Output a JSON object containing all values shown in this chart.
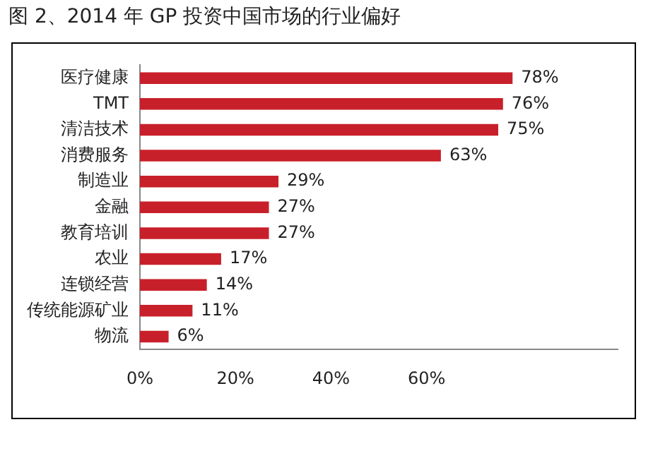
{
  "chart_data": {
    "type": "bar",
    "orientation": "horizontal",
    "title": "图 2、2014 年 GP 投资中国市场的行业偏好",
    "categories": [
      "医疗健康",
      "TMT",
      "清洁技术",
      "消费服务",
      "制造业",
      "金融",
      "教育培训",
      "农业",
      "连锁经营",
      "传统能源矿业",
      "物流"
    ],
    "values": [
      78,
      76,
      75,
      63,
      29,
      27,
      27,
      17,
      14,
      11,
      6
    ],
    "value_labels": [
      "78%",
      "76%",
      "75%",
      "63%",
      "29%",
      "27%",
      "27%",
      "17%",
      "14%",
      "11%",
      "6%"
    ],
    "color": "#c8202a",
    "xlim": [
      0,
      100
    ],
    "xticks": [
      {
        "value": 0,
        "label": "0%"
      },
      {
        "value": 20,
        "label": "20%"
      },
      {
        "value": 40,
        "label": "40%"
      },
      {
        "value": 60,
        "label": "60%"
      }
    ],
    "grid": false,
    "legend": false
  }
}
